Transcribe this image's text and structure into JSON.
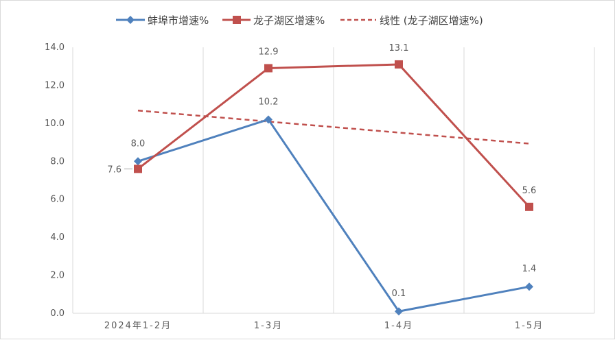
{
  "chart_data": {
    "type": "line",
    "categories": [
      "2024年1-2月",
      "1-3月",
      "1-4月",
      "1-5月"
    ],
    "ylim": [
      0,
      14
    ],
    "yticks": [
      "0.0",
      "2.0",
      "4.0",
      "6.0",
      "8.0",
      "10.0",
      "12.0",
      "14.0"
    ],
    "grid": "vertical",
    "legend_position": "top",
    "series": [
      {
        "name": "蚌埠市增速%",
        "values": [
          8.0,
          10.2,
          0.1,
          1.4
        ],
        "labels": [
          "8.0",
          "10.2",
          "0.1",
          "1.4"
        ],
        "color": "#4f81bd",
        "marker": "diamond"
      },
      {
        "name": "龙子湖区增速%",
        "values": [
          7.6,
          12.9,
          13.1,
          5.6
        ],
        "labels": [
          "7.6",
          "12.9",
          "13.1",
          "5.6"
        ],
        "color": "#c0504d",
        "marker": "square"
      }
    ],
    "trendline": {
      "name": "线性 (龙子湖区增速%)",
      "of_series": "龙子湖区增速%",
      "type": "linear",
      "color": "#c0504d",
      "style": "dashed"
    }
  }
}
